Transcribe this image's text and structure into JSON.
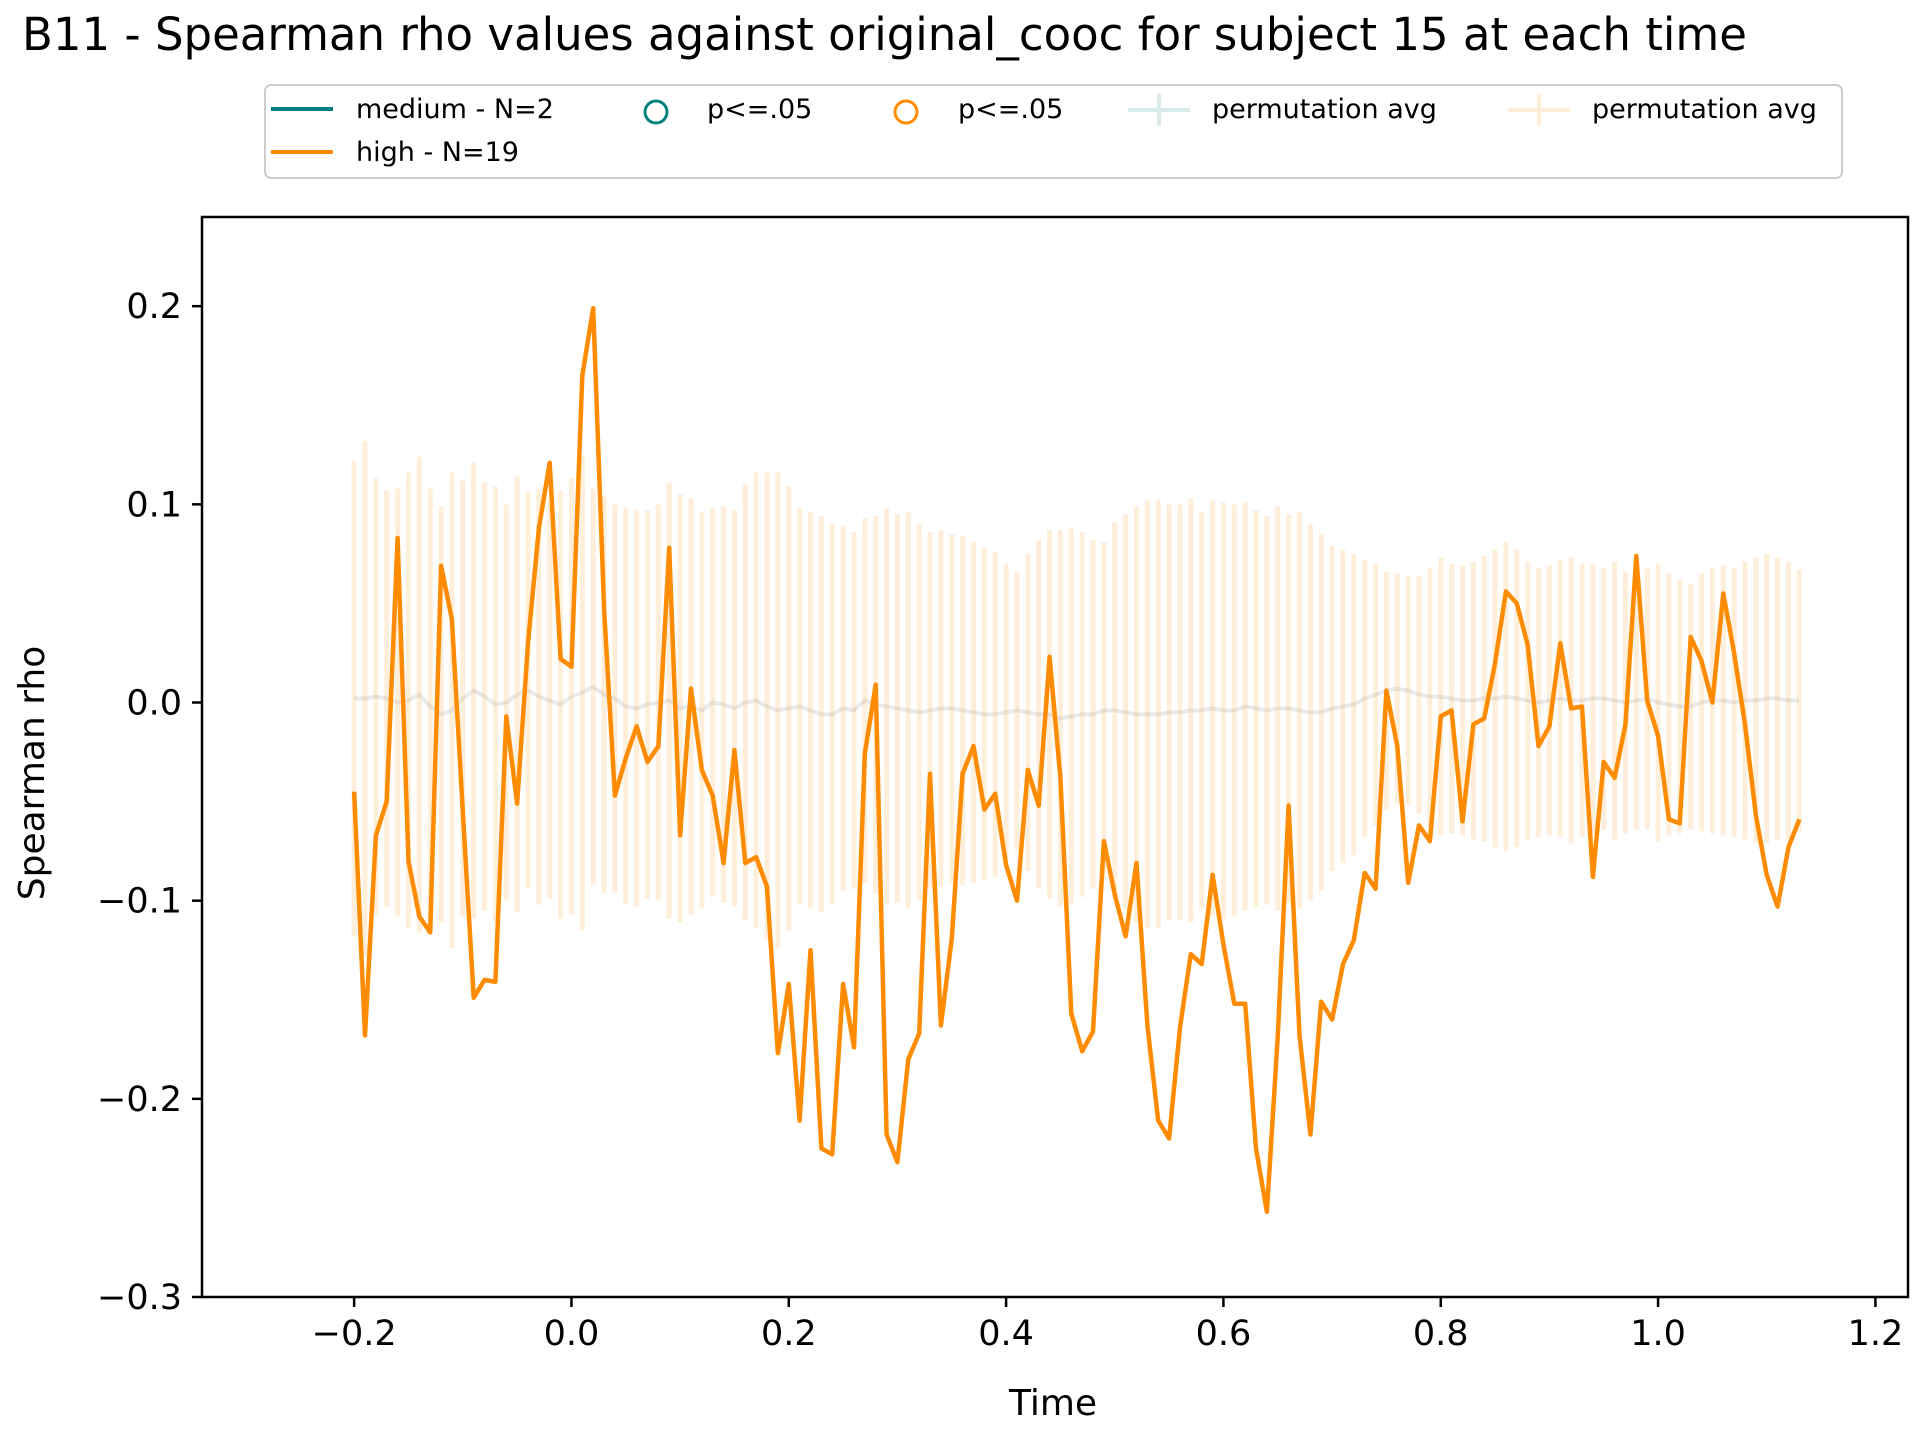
{
  "chart_data": {
    "type": "line",
    "title": "B11 - Spearman rho values against original_cooc for subject 15 at each time",
    "xlabel": "Time",
    "ylabel": "Spearman rho",
    "xlim": [
      -0.34,
      1.23
    ],
    "ylim": [
      -0.3,
      0.245
    ],
    "xticks": [
      -0.2,
      0.0,
      0.2,
      0.4,
      0.6,
      0.8,
      1.0,
      1.2
    ],
    "yticks": [
      -0.3,
      -0.2,
      -0.1,
      0.0,
      0.1,
      0.2
    ],
    "grid": false,
    "legend": {
      "placement": "top-center",
      "entries": [
        {
          "label": "medium - N=2",
          "kind": "line",
          "color": "#008080"
        },
        {
          "label": "high - N=19",
          "kind": "line",
          "color": "#ff8c00"
        },
        {
          "label": "p<=.05",
          "kind": "marker",
          "color": "#008080"
        },
        {
          "label": "p<=.05",
          "kind": "marker",
          "color": "#ff8c00"
        },
        {
          "label": "permutation avg",
          "kind": "errorbar",
          "color": "#008080"
        },
        {
          "label": "permutation avg",
          "kind": "errorbar",
          "color": "#ff8c00"
        }
      ]
    },
    "series": [
      {
        "name": "high - N=19",
        "color": "#ff8c00",
        "x_start": -0.2,
        "x_step": 0.01,
        "values": [
          -0.045,
          -0.168,
          -0.067,
          -0.05,
          0.083,
          -0.08,
          -0.108,
          -0.116,
          0.069,
          0.042,
          -0.055,
          -0.149,
          -0.14,
          -0.141,
          -0.007,
          -0.051,
          0.03,
          0.088,
          0.121,
          0.022,
          0.018,
          0.165,
          0.199,
          0.047,
          -0.047,
          -0.028,
          -0.012,
          -0.03,
          -0.022,
          0.078,
          -0.067,
          0.007,
          -0.034,
          -0.047,
          -0.081,
          -0.024,
          -0.081,
          -0.078,
          -0.093,
          -0.177,
          -0.142,
          -0.211,
          -0.125,
          -0.225,
          -0.228,
          -0.142,
          -0.174,
          -0.026,
          0.009,
          -0.218,
          -0.232,
          -0.18,
          -0.167,
          -0.036,
          -0.163,
          -0.119,
          -0.036,
          -0.022,
          -0.054,
          -0.046,
          -0.082,
          -0.1,
          -0.034,
          -0.052,
          0.023,
          -0.038,
          -0.157,
          -0.176,
          -0.166,
          -0.07,
          -0.097,
          -0.118,
          -0.081,
          -0.163,
          -0.211,
          -0.22,
          -0.164,
          -0.127,
          -0.132,
          -0.087,
          -0.122,
          -0.152,
          -0.152,
          -0.225,
          -0.257,
          -0.168,
          -0.052,
          -0.168,
          -0.218,
          -0.151,
          -0.16,
          -0.132,
          -0.12,
          -0.086,
          -0.094,
          0.006,
          -0.022,
          -0.091,
          -0.062,
          -0.07,
          -0.007,
          -0.004,
          -0.06,
          -0.011,
          -0.008,
          0.02,
          0.056,
          0.05,
          0.029,
          -0.022,
          -0.012,
          0.03,
          -0.003,
          -0.002,
          -0.088,
          -0.03,
          -0.038,
          -0.011,
          0.074,
          0.001,
          -0.017,
          -0.059,
          -0.061,
          0.033,
          0.021,
          0.0,
          0.055,
          0.025,
          -0.011,
          -0.057,
          -0.087,
          -0.103,
          -0.073,
          -0.059
        ]
      }
    ],
    "permutation_band": {
      "name": "permutation avg",
      "color": "#ff8c00",
      "x_start": -0.2,
      "x_step": 0.01,
      "means": [
        0.002,
        0.002,
        0.003,
        0.002,
        0.0,
        0.001,
        0.004,
        -0.002,
        -0.006,
        -0.004,
        0.002,
        0.006,
        0.003,
        -0.001,
        0.0,
        0.004,
        0.006,
        0.003,
        0.001,
        -0.001,
        0.003,
        0.005,
        0.008,
        0.004,
        0.002,
        -0.002,
        -0.003,
        -0.001,
        0.0,
        0.001,
        -0.003,
        -0.002,
        -0.004,
        0.0,
        -0.001,
        -0.003,
        0.0,
        0.001,
        -0.002,
        -0.004,
        -0.003,
        -0.002,
        -0.004,
        -0.006,
        -0.006,
        -0.003,
        -0.004,
        0.001,
        -0.001,
        -0.002,
        -0.003,
        -0.004,
        -0.005,
        -0.004,
        -0.003,
        -0.003,
        -0.004,
        -0.005,
        -0.006,
        -0.006,
        -0.005,
        -0.004,
        -0.005,
        -0.006,
        -0.006,
        -0.008,
        -0.007,
        -0.006,
        -0.006,
        -0.004,
        -0.004,
        -0.005,
        -0.006,
        -0.006,
        -0.006,
        -0.005,
        -0.005,
        -0.004,
        -0.004,
        -0.003,
        -0.004,
        -0.004,
        -0.002,
        -0.003,
        -0.004,
        -0.003,
        -0.003,
        -0.004,
        -0.005,
        -0.005,
        -0.003,
        -0.002,
        -0.001,
        0.002,
        0.004,
        0.006,
        0.007,
        0.006,
        0.004,
        0.003,
        0.003,
        0.002,
        0.001,
        0.001,
        0.002,
        0.002,
        0.003,
        0.002,
        0.001,
        0.0,
        0.001,
        0.002,
        0.001,
        0.001,
        0.002,
        0.002,
        0.001,
        0.0,
        0.001,
        0.002,
        0.0,
        -0.001,
        -0.002,
        -0.002,
        0.0,
        0.001,
        0.001,
        0.0,
        0.001,
        0.001,
        0.002,
        0.002,
        0.001,
        0.001
      ],
      "half_widths": [
        0.12,
        0.13,
        0.11,
        0.105,
        0.108,
        0.115,
        0.12,
        0.11,
        0.105,
        0.12,
        0.11,
        0.115,
        0.108,
        0.11,
        0.1,
        0.11,
        0.1,
        0.105,
        0.1,
        0.108,
        0.11,
        0.12,
        0.1,
        0.1,
        0.098,
        0.1,
        0.1,
        0.098,
        0.1,
        0.11,
        0.108,
        0.105,
        0.1,
        0.098,
        0.1,
        0.1,
        0.11,
        0.115,
        0.118,
        0.12,
        0.112,
        0.1,
        0.1,
        0.1,
        0.096,
        0.092,
        0.09,
        0.092,
        0.095,
        0.1,
        0.098,
        0.1,
        0.095,
        0.09,
        0.09,
        0.088,
        0.088,
        0.086,
        0.084,
        0.082,
        0.075,
        0.07,
        0.08,
        0.088,
        0.093,
        0.095,
        0.095,
        0.092,
        0.088,
        0.085,
        0.095,
        0.1,
        0.105,
        0.108,
        0.108,
        0.105,
        0.105,
        0.107,
        0.1,
        0.105,
        0.105,
        0.104,
        0.103,
        0.1,
        0.098,
        0.102,
        0.098,
        0.1,
        0.095,
        0.09,
        0.082,
        0.079,
        0.076,
        0.07,
        0.066,
        0.06,
        0.058,
        0.058,
        0.06,
        0.065,
        0.07,
        0.068,
        0.068,
        0.07,
        0.072,
        0.075,
        0.078,
        0.075,
        0.07,
        0.068,
        0.068,
        0.07,
        0.072,
        0.069,
        0.068,
        0.066,
        0.07,
        0.066,
        0.065,
        0.066,
        0.07,
        0.066,
        0.064,
        0.062,
        0.065,
        0.067,
        0.068,
        0.068,
        0.07,
        0.072,
        0.073,
        0.071,
        0.07,
        0.066
      ]
    }
  }
}
